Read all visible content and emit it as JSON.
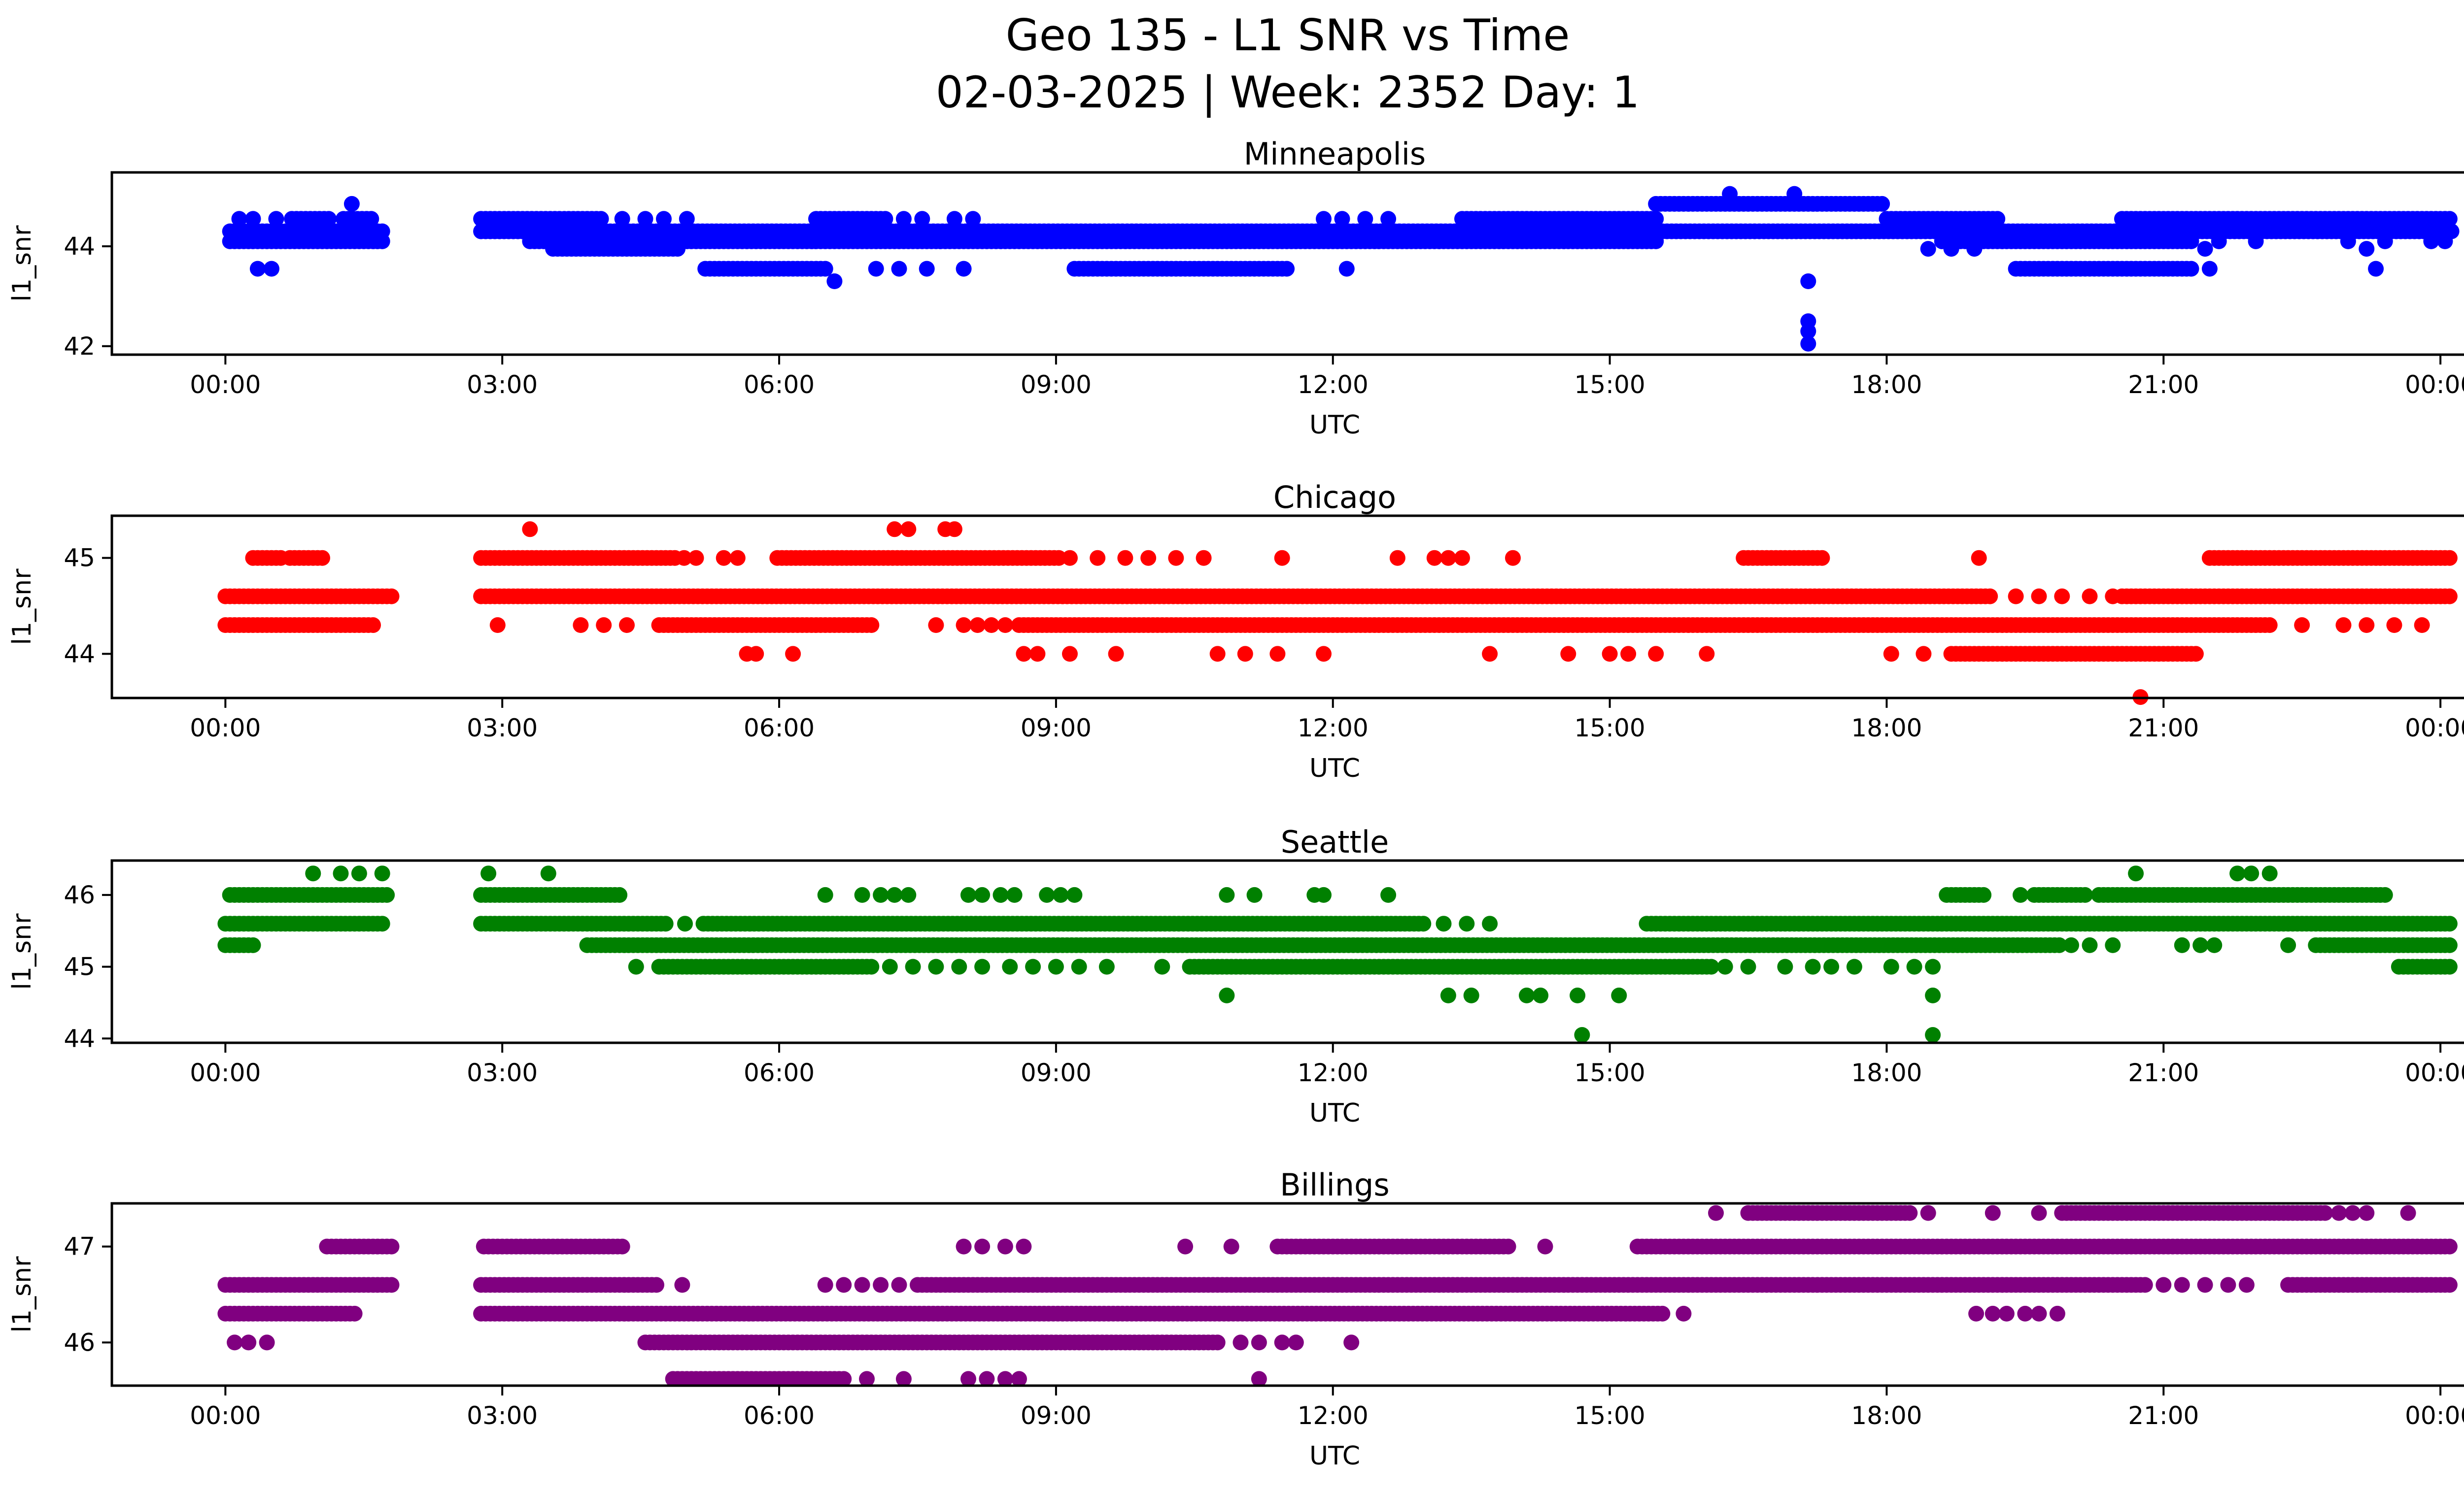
{
  "figure": {
    "title_line1": "Geo 135 - L1 SNR vs Time",
    "title_line2": "02-03-2025 | Week: 2352 Day: 1"
  },
  "chart_data": [
    {
      "type": "scatter",
      "title": "Minneapolis",
      "color": "#0000ff",
      "xlabel": "UTC",
      "ylabel": "l1_snr",
      "x_axis": {
        "lim": [
          -1.23,
          25.27
        ],
        "ticks_hours": [
          0,
          3,
          6,
          9,
          12,
          15,
          18,
          21,
          24
        ],
        "tick_labels": [
          "00:00",
          "03:00",
          "06:00",
          "09:00",
          "12:00",
          "15:00",
          "18:00",
          "21:00",
          "00:00"
        ]
      },
      "y_axis": {
        "lim": [
          41.83,
          45.48
        ],
        "ticks": [
          44,
          42
        ]
      },
      "bands": [
        {
          "snr": 45.05,
          "segments": [],
          "dots": [
            16.3,
            17.0
          ]
        },
        {
          "snr": 44.85,
          "segments": [
            [
              15.5,
              17.95
            ]
          ],
          "dots": [
            1.37
          ]
        },
        {
          "snr": 44.55,
          "segments": [
            [
              0.72,
              1.15
            ],
            [
              1.28,
              1.62
            ],
            [
              2.77,
              4.1
            ],
            [
              6.4,
              7.15
            ],
            [
              13.4,
              15.5
            ],
            [
              18.0,
              19.2
            ],
            [
              20.55,
              24.1
            ]
          ],
          "dots": [
            0.15,
            0.3,
            0.55,
            4.3,
            4.55,
            4.75,
            5.0,
            7.35,
            7.55,
            7.9,
            8.1,
            11.9,
            12.1,
            12.35,
            12.6
          ]
        },
        {
          "snr": 44.3,
          "segments": [
            [
              0.05,
              1.72
            ],
            [
              2.77,
              24.13
            ]
          ],
          "dots": []
        },
        {
          "snr": 44.1,
          "segments": [
            [
              0.05,
              1.72
            ],
            [
              3.3,
              15.5
            ],
            [
              18.6,
              21.3
            ]
          ],
          "dots": [
            21.6,
            22.0,
            23.0,
            23.4,
            23.9,
            24.05
          ]
        },
        {
          "snr": 43.95,
          "segments": [
            [
              3.55,
              4.9
            ]
          ],
          "dots": [
            18.45,
            18.7,
            18.95,
            21.45,
            23.2
          ]
        },
        {
          "snr": 43.55,
          "segments": [
            [
              5.2,
              6.5
            ],
            [
              9.2,
              11.5
            ],
            [
              19.4,
              21.3
            ]
          ],
          "dots": [
            0.35,
            0.5,
            7.05,
            7.3,
            7.6,
            8.0,
            12.15,
            21.5,
            23.3
          ]
        },
        {
          "snr": 43.3,
          "segments": [],
          "dots": [
            6.6,
            17.15
          ]
        },
        {
          "snr": 42.5,
          "segments": [],
          "dots": [
            17.15
          ]
        },
        {
          "snr": 42.3,
          "segments": [],
          "dots": [
            17.15
          ]
        },
        {
          "snr": 42.05,
          "segments": [],
          "dots": [
            17.15
          ]
        }
      ]
    },
    {
      "type": "scatter",
      "title": "Chicago",
      "color": "#ff0000",
      "xlabel": "UTC",
      "ylabel": "l1_snr",
      "x_axis": {
        "lim": [
          -1.23,
          25.27
        ],
        "ticks_hours": [
          0,
          3,
          6,
          9,
          12,
          15,
          18,
          21,
          24
        ],
        "tick_labels": [
          "00:00",
          "03:00",
          "06:00",
          "09:00",
          "12:00",
          "15:00",
          "18:00",
          "21:00",
          "00:00"
        ]
      },
      "y_axis": {
        "lim": [
          43.54,
          45.44
        ],
        "ticks": [
          45,
          44
        ]
      },
      "bands": [
        {
          "snr": 45.3,
          "segments": [],
          "dots": [
            3.3,
            7.25,
            7.4,
            7.8,
            7.9
          ]
        },
        {
          "snr": 45.0,
          "segments": [
            [
              0.3,
              0.62
            ],
            [
              0.7,
              1.08
            ],
            [
              2.77,
              4.88
            ],
            [
              5.98,
              9.05
            ],
            [
              16.45,
              17.3
            ],
            [
              21.5,
              24.1
            ]
          ],
          "dots": [
            4.97,
            5.1,
            5.4,
            5.55,
            9.15,
            9.45,
            9.75,
            10.0,
            10.3,
            10.6,
            11.45,
            12.7,
            13.1,
            13.25,
            13.4,
            13.95,
            19.0
          ]
        },
        {
          "snr": 44.6,
          "segments": [
            [
              0.0,
              1.8
            ],
            [
              2.77,
              19.15
            ],
            [
              20.55,
              24.1
            ]
          ],
          "dots": [
            19.4,
            19.65,
            19.9,
            20.2,
            20.45
          ]
        },
        {
          "snr": 44.3,
          "segments": [
            [
              0.0,
              1.6
            ],
            [
              4.7,
              7.0
            ],
            [
              8.6,
              22.15
            ]
          ],
          "dots": [
            2.95,
            3.85,
            4.1,
            4.35,
            7.7,
            8.0,
            8.15,
            8.3,
            8.45,
            22.5,
            22.95,
            23.2,
            23.5,
            23.8
          ]
        },
        {
          "snr": 44.0,
          "segments": [
            [
              18.7,
              21.35
            ]
          ],
          "dots": [
            5.65,
            5.75,
            6.15,
            8.65,
            8.8,
            9.15,
            9.65,
            10.75,
            11.05,
            11.4,
            11.9,
            13.7,
            14.55,
            15.0,
            15.2,
            15.5,
            16.05,
            18.05,
            18.4
          ]
        },
        {
          "snr": 43.55,
          "segments": [],
          "dots": [
            20.75
          ]
        }
      ]
    },
    {
      "type": "scatter",
      "title": "Seattle",
      "color": "#008000",
      "xlabel": "UTC",
      "ylabel": "l1_snr",
      "x_axis": {
        "lim": [
          -1.23,
          25.27
        ],
        "ticks_hours": [
          0,
          3,
          6,
          9,
          12,
          15,
          18,
          21,
          24
        ],
        "tick_labels": [
          "00:00",
          "03:00",
          "06:00",
          "09:00",
          "12:00",
          "15:00",
          "18:00",
          "21:00",
          "00:00"
        ]
      },
      "y_axis": {
        "lim": [
          43.94,
          46.48
        ],
        "ticks": [
          46,
          45,
          44
        ]
      },
      "bands": [
        {
          "snr": 46.3,
          "segments": [],
          "dots": [
            0.95,
            1.25,
            1.45,
            1.7,
            2.85,
            3.5,
            20.7,
            21.8,
            21.95,
            22.15
          ]
        },
        {
          "snr": 46.0,
          "segments": [
            [
              0.05,
              1.75
            ],
            [
              2.77,
              4.28
            ],
            [
              18.65,
              19.05
            ],
            [
              19.6,
              20.15
            ],
            [
              20.3,
              23.4
            ]
          ],
          "dots": [
            6.5,
            6.9,
            7.1,
            7.25,
            7.4,
            8.05,
            8.2,
            8.4,
            8.55,
            8.9,
            9.05,
            9.2,
            10.85,
            11.15,
            11.8,
            11.9,
            12.6,
            19.45
          ]
        },
        {
          "snr": 45.6,
          "segments": [
            [
              0.0,
              1.74
            ],
            [
              2.77,
              4.8
            ],
            [
              5.18,
              12.98
            ],
            [
              15.4,
              24.1
            ]
          ],
          "dots": [
            4.98,
            13.2,
            13.45,
            13.7
          ]
        },
        {
          "snr": 45.3,
          "segments": [
            [
              0.0,
              0.32
            ],
            [
              3.92,
              19.87
            ],
            [
              22.65,
              24.1
            ]
          ],
          "dots": [
            20.0,
            20.2,
            20.45,
            21.2,
            21.4,
            21.55,
            22.35
          ]
        },
        {
          "snr": 45.0,
          "segments": [
            [
              4.7,
              7.0
            ],
            [
              10.45,
              16.1
            ],
            [
              23.55,
              24.1
            ]
          ],
          "dots": [
            4.45,
            7.2,
            7.45,
            7.7,
            7.95,
            8.2,
            8.5,
            8.75,
            9.0,
            9.25,
            9.55,
            10.15,
            16.25,
            16.5,
            16.9,
            17.2,
            17.4,
            17.65,
            18.05,
            18.3,
            18.5
          ]
        },
        {
          "snr": 44.6,
          "segments": [],
          "dots": [
            10.85,
            13.25,
            13.5,
            14.1,
            14.25,
            14.65,
            15.1,
            18.5
          ]
        },
        {
          "snr": 44.05,
          "segments": [],
          "dots": [
            14.7,
            18.5
          ]
        }
      ]
    },
    {
      "type": "scatter",
      "title": "Billings",
      "color": "#800080",
      "xlabel": "UTC",
      "ylabel": "l1_snr",
      "x_axis": {
        "lim": [
          -1.23,
          25.27
        ],
        "ticks_hours": [
          0,
          3,
          6,
          9,
          12,
          15,
          18,
          21,
          24
        ],
        "tick_labels": [
          "00:00",
          "03:00",
          "06:00",
          "09:00",
          "12:00",
          "15:00",
          "18:00",
          "21:00",
          "00:00"
        ]
      },
      "y_axis": {
        "lim": [
          45.55,
          47.45
        ],
        "ticks": [
          47,
          46
        ]
      },
      "bands": [
        {
          "snr": 47.35,
          "segments": [
            [
              16.5,
              18.25
            ],
            [
              19.9,
              22.75
            ]
          ],
          "dots": [
            16.15,
            18.45,
            19.15,
            19.65,
            22.9,
            23.05,
            23.2,
            23.65
          ]
        },
        {
          "snr": 47.0,
          "segments": [
            [
              1.1,
              1.8
            ],
            [
              2.8,
              4.3
            ],
            [
              11.4,
              13.9
            ],
            [
              15.3,
              24.1
            ]
          ],
          "dots": [
            8.0,
            8.2,
            8.45,
            8.65,
            10.4,
            10.9,
            14.3
          ]
        },
        {
          "snr": 46.6,
          "segments": [
            [
              0.0,
              1.8
            ],
            [
              2.77,
              4.7
            ],
            [
              7.5,
              20.8
            ],
            [
              22.35,
              24.1
            ]
          ],
          "dots": [
            4.95,
            6.5,
            6.7,
            6.9,
            7.1,
            7.3,
            21.0,
            21.2,
            21.45,
            21.7,
            21.9
          ]
        },
        {
          "snr": 46.3,
          "segments": [
            [
              0.0,
              1.4
            ],
            [
              2.77,
              15.6
            ]
          ],
          "dots": [
            15.8,
            18.97,
            19.15,
            19.3,
            19.5,
            19.65,
            19.85
          ]
        },
        {
          "snr": 46.0,
          "segments": [
            [
              4.55,
              10.75
            ]
          ],
          "dots": [
            0.1,
            0.25,
            0.45,
            11.0,
            11.2,
            11.45,
            11.6,
            12.2
          ]
        },
        {
          "snr": 45.62,
          "segments": [
            [
              4.85,
              6.7
            ]
          ],
          "dots": [
            6.95,
            7.35,
            8.05,
            8.25,
            8.45,
            8.6,
            11.2
          ]
        }
      ]
    }
  ]
}
